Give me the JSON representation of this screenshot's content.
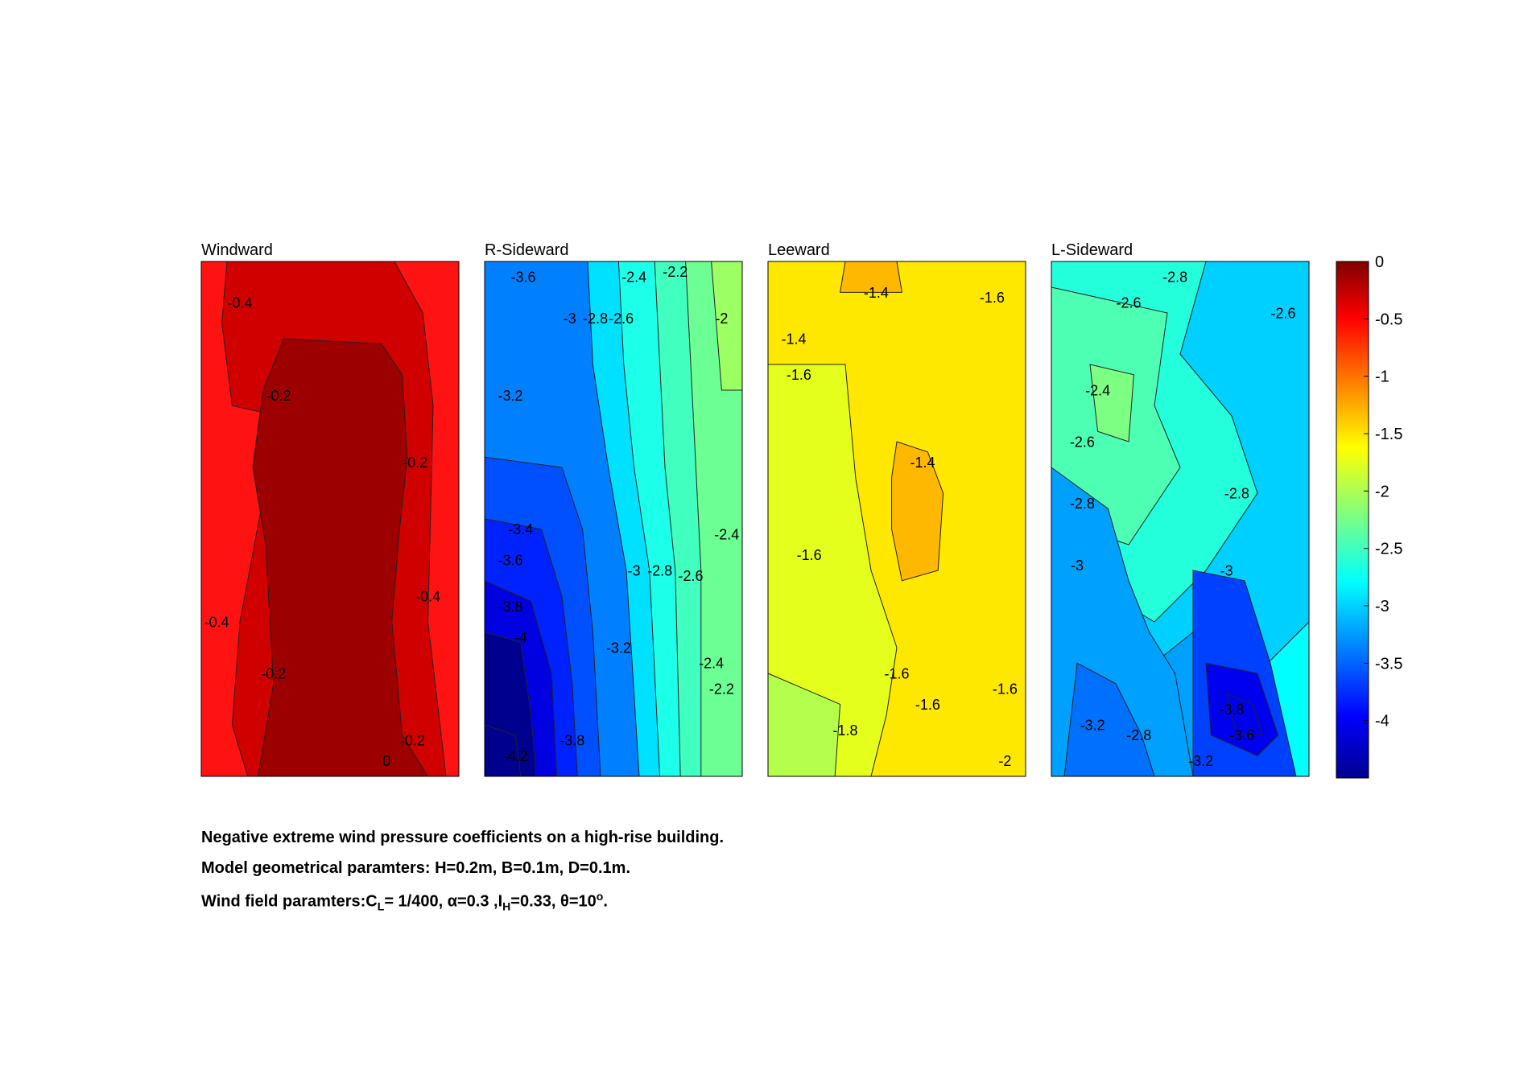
{
  "chart_data": {
    "type": "contour",
    "colorbar": {
      "ticks": [
        "0",
        "-0.5",
        "-1",
        "-1.5",
        "-2",
        "-2.5",
        "-3",
        "-3.5",
        "-4"
      ],
      "range": [
        -4.5,
        0
      ],
      "colormap": "jet"
    },
    "panels": [
      {
        "title": "Windward",
        "range": [
          -0.5,
          0
        ],
        "bands": [
          {
            "value": -0.45,
            "color": "#ff1212"
          },
          {
            "value": -0.25,
            "color": "#d10000"
          },
          {
            "value": -0.05,
            "color": "#9c0000"
          }
        ],
        "contour_labels": [
          "-0.4",
          "-0.2",
          "-0.2",
          "-0.4",
          "-0.4",
          "-0.2",
          "-0.2",
          "0"
        ]
      },
      {
        "title": "R-Sideward",
        "range": [
          -4.2,
          -2.0
        ],
        "bands": [
          {
            "value": -4.2,
            "color": "#00008f"
          },
          {
            "value": -3.9,
            "color": "#0000e0"
          },
          {
            "value": -3.7,
            "color": "#0022ff"
          },
          {
            "value": -3.5,
            "color": "#0050ff"
          },
          {
            "value": -3.3,
            "color": "#0080ff"
          },
          {
            "value": -3.1,
            "color": "#00b0ff"
          },
          {
            "value": -2.9,
            "color": "#00e0ff"
          },
          {
            "value": -2.7,
            "color": "#1cffe8"
          },
          {
            "value": -2.5,
            "color": "#40ffbf"
          },
          {
            "value": -2.3,
            "color": "#6cff93"
          },
          {
            "value": -2.1,
            "color": "#9cff63"
          }
        ],
        "contour_labels": [
          "-3.6",
          "-2.4",
          "-2.2",
          "-3",
          "-2.8",
          "-2.6",
          "-2",
          "-3.2",
          "-3.4",
          "-2.4",
          "-3.6",
          "-3",
          "-2.8",
          "-2.6",
          "-3.8",
          "-4",
          "-3.2",
          "-2.4",
          "-2.2",
          "-3.8",
          "-4.2"
        ]
      },
      {
        "title": "Leeward",
        "range": [
          -2.0,
          -1.3
        ],
        "bands": [
          {
            "value": -1.3,
            "color": "#ffb800"
          },
          {
            "value": -1.5,
            "color": "#ffe800"
          },
          {
            "value": -1.7,
            "color": "#e4ff1c"
          },
          {
            "value": -1.9,
            "color": "#b4ff4c"
          }
        ],
        "contour_labels": [
          "-1.4",
          "-1.6",
          "-1.4",
          "-1.6",
          "-1.4",
          "-1.6",
          "-1.6",
          "-1.6",
          "-1.6",
          "-1.8",
          "-2"
        ]
      },
      {
        "title": "L-Sideward",
        "range": [
          -4.0,
          -2.2
        ],
        "bands": [
          {
            "value": -4.0,
            "color": "#0000f0"
          },
          {
            "value": -3.7,
            "color": "#0040ff"
          },
          {
            "value": -3.5,
            "color": "#0070ff"
          },
          {
            "value": -3.3,
            "color": "#00a0ff"
          },
          {
            "value": -3.1,
            "color": "#00d0ff"
          },
          {
            "value": -2.9,
            "color": "#00ffff"
          },
          {
            "value": -2.7,
            "color": "#24ffdb"
          },
          {
            "value": -2.5,
            "color": "#4cffb3"
          },
          {
            "value": -2.3,
            "color": "#7cff83"
          }
        ],
        "contour_labels": [
          "-2.8",
          "-2.6",
          "-2.6",
          "-2.4",
          "-2.6",
          "-2.8",
          "-2.8",
          "-3",
          "-3",
          "-3.2",
          "-2.8",
          "-3.8",
          "-3.6",
          "-3.2"
        ]
      }
    ]
  },
  "caption": {
    "line1": "Negative extreme wind pressure coefficients on a high-rise building.",
    "line2": "Model geometrical paramters: H=0.2m, B=0.1m, D=0.1m.",
    "line3_prefix": "Wind field paramters:C",
    "line3_cl_sub": "L",
    "line3_mid1": "= 1/400, α=0.3 ,I",
    "line3_ih_sub": "H",
    "line3_mid2": "=0.33, θ=10",
    "line3_sup": "o",
    "line3_end": "."
  }
}
